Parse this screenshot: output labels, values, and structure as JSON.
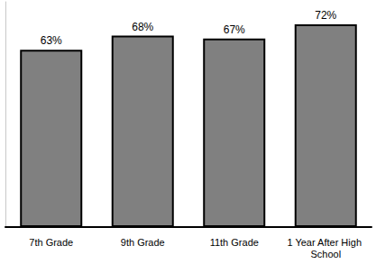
{
  "chart_data": {
    "type": "bar",
    "categories": [
      "7th Grade",
      "9th Grade",
      "11th Grade",
      "1 Year After High School"
    ],
    "values": [
      63,
      68,
      67,
      72
    ],
    "value_labels": [
      "63%",
      "68%",
      "67%",
      "72%"
    ],
    "color": "#808080",
    "ylim": [
      0,
      80
    ],
    "grid": false,
    "data_labels": true,
    "tick_labels": "x"
  }
}
